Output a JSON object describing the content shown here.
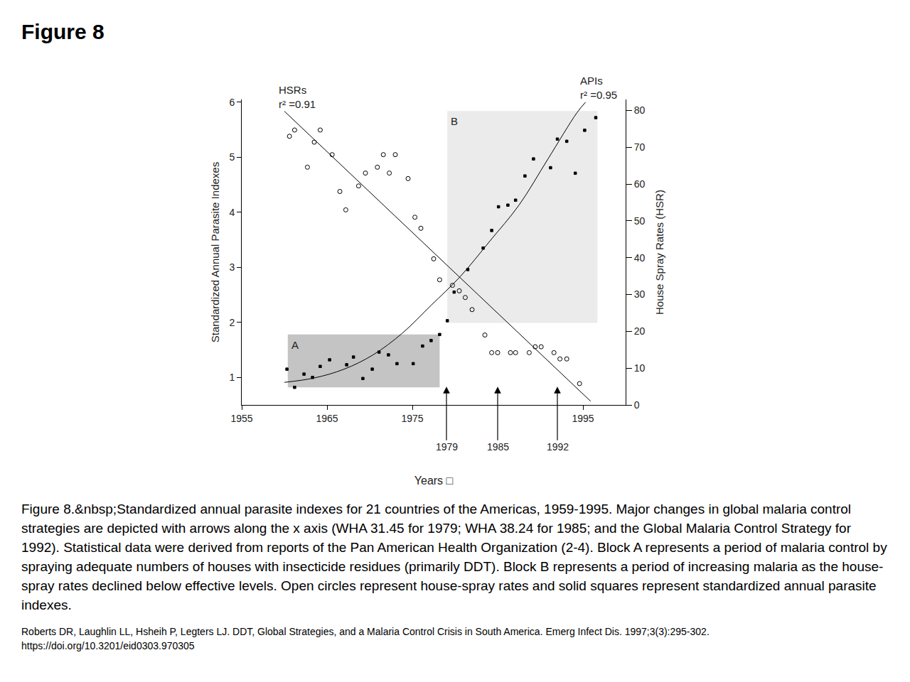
{
  "heading": "Figure 8",
  "chart_data": {
    "type": "scatter",
    "xlabel": "Years □",
    "ylabel": "Standardized Annual Parasite Indexes",
    "y2label": "House Spray Rates (HSR)",
    "xlim": [
      1955,
      2000
    ],
    "xticks": [
      1955,
      1965,
      1975,
      1995
    ],
    "ylim": [
      0.5,
      6.05
    ],
    "yticks": [
      1,
      2,
      3,
      4,
      5,
      6
    ],
    "y2lim": [
      0,
      83
    ],
    "y2ticks": [
      0,
      10,
      20,
      30,
      40,
      50,
      60,
      70,
      80
    ],
    "grid": false,
    "series": [
      {
        "name": "HSRs",
        "axis": "y2",
        "marker": "circle-open",
        "color": "#000000",
        "x": [
          1960.6,
          1961.2,
          1962.7,
          1963.5,
          1964.2,
          1965.6,
          1966.5,
          1967.2,
          1968.7,
          1969.5,
          1970.9,
          1971.6,
          1972.3,
          1973.0,
          1974.5,
          1975.3,
          1976.0,
          1977.5,
          1978.2,
          1979.7,
          1980.5,
          1981.2,
          1982.0,
          1983.5,
          1984.3,
          1985.0,
          1986.5,
          1987.1,
          1988.7,
          1989.4,
          1990.1,
          1991.6,
          1992.3,
          1993.1,
          1994.6
        ],
        "values": [
          73,
          74.7,
          64.6,
          71.4,
          74.7,
          68,
          58,
          53,
          59.5,
          63,
          64.6,
          68,
          63,
          68,
          61.5,
          51,
          48,
          39.7,
          34,
          32.5,
          31,
          29.2,
          25.9,
          19,
          14.2,
          14.2,
          14.2,
          14.2,
          14.2,
          15.8,
          15.8,
          14.2,
          12.5,
          12.5,
          5.8
        ],
        "fit": {
          "label": "r² =0.91",
          "line_style": "solid",
          "x": [
            1960,
            1995.9
          ],
          "values": [
            79.8,
            1.0
          ]
        }
      },
      {
        "name": "APIs",
        "marker": "square",
        "color": "#000000",
        "x": [
          1960.3,
          1961.2,
          1962.3,
          1963.3,
          1964.2,
          1965.3,
          1967.3,
          1968.1,
          1969.2,
          1970.3,
          1971.1,
          1972.2,
          1973.2,
          1975.1,
          1976.2,
          1977.2,
          1978.2,
          1979.1,
          1979.9,
          1981.5,
          1983.3,
          1984.3,
          1985.1,
          1986.2,
          1987.1,
          1988.2,
          1989.2,
          1991.2,
          1992.0,
          1993.1,
          1994.1,
          1995.2,
          1996.5
        ],
        "values": [
          1.15,
          0.82,
          1.06,
          1.0,
          1.2,
          1.32,
          1.23,
          1.37,
          0.98,
          1.15,
          1.46,
          1.41,
          1.25,
          1.25,
          1.57,
          1.67,
          1.78,
          2.03,
          2.55,
          2.96,
          3.35,
          3.67,
          4.1,
          4.13,
          4.22,
          4.66,
          4.97,
          4.81,
          5.33,
          5.29,
          4.71,
          5.49,
          5.72
        ],
        "fit": {
          "label": "r² =0.95",
          "line_style": "solid",
          "x": [
            1960,
            1963.5,
            1967,
            1970.4,
            1973.8,
            1977.2,
            1980.6,
            1984.1,
            1987.5,
            1990.9,
            1994.3,
            1995.3
          ],
          "values": [
            0.91,
            0.99,
            1.15,
            1.41,
            1.8,
            2.31,
            2.83,
            3.48,
            4.13,
            4.97,
            5.81,
            6.0
          ]
        }
      }
    ],
    "regions": [
      {
        "label": "A",
        "x": [
          1960.4,
          1978.2
        ],
        "y": [
          0.82,
          1.78
        ],
        "color": "#c4c4c4"
      },
      {
        "label": "B",
        "x": [
          1979.1,
          1996.7
        ],
        "y": [
          1.99,
          5.84
        ],
        "color": "#ebebeb"
      }
    ],
    "events": [
      1979,
      1985,
      1992
    ]
  },
  "caption": "Figure 8.&nbsp;Standardized annual parasite indexes for 21 countries of the Americas, 1959-1995. Major changes in global malaria control strategies are depicted with arrows along the x axis (WHA 31.45 for 1979; WHA 38.24 for 1985; and the Global Malaria Control Strategy for 1992). Statistical data were derived from reports of the Pan American Health Organization (2-4). Block A represents a period of malaria control by spraying adequate numbers of houses with insecticide residues (primarily DDT). Block B represents a period of increasing malaria as the house-spray rates declined below effective levels. Open circles represent house-spray rates and solid squares represent standardized annual parasite indexes.",
  "citation": [
    "Roberts DR, Laughlin LL, Hsheih P, Legters LJ. DDT, Global Strategies, and a Malaria Control Crisis in South America. Emerg Infect Dis. 1997;3(3):295-302.",
    "https://doi.org/10.3201/eid0303.970305"
  ]
}
